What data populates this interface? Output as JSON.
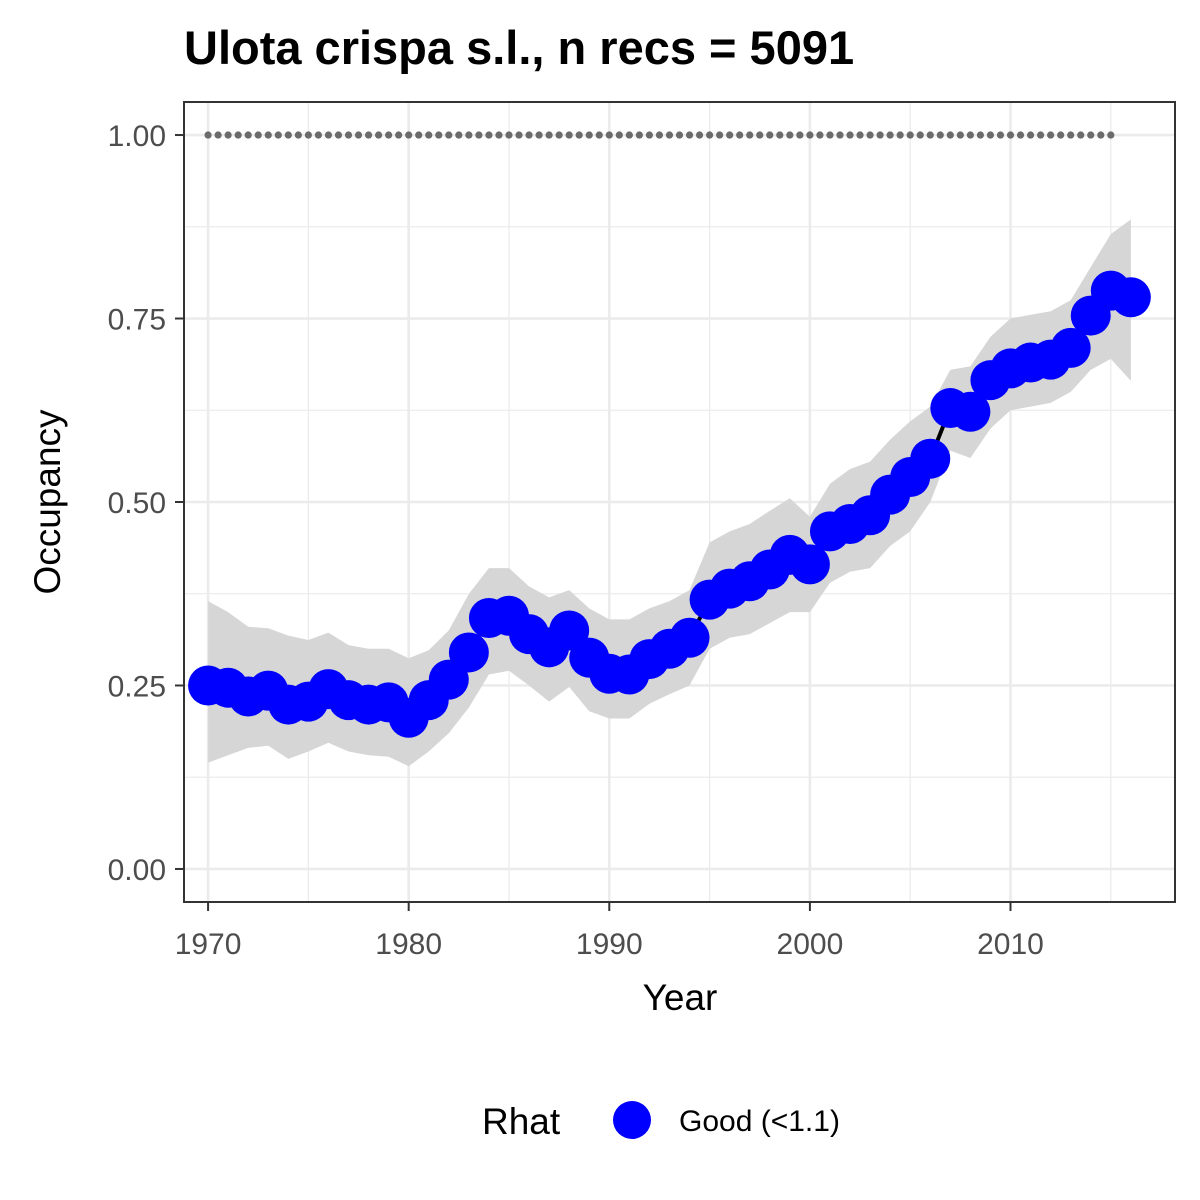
{
  "chart_data": {
    "type": "line",
    "title": "Ulota crispa s.l., n recs = 5091",
    "xlabel": "Year",
    "ylabel": "Occupancy",
    "xlim": [
      1968.8,
      2018.2
    ],
    "ylim": [
      -0.045,
      1.045
    ],
    "x_ticks": [
      1970,
      1980,
      1990,
      2000,
      2010
    ],
    "x_tick_labels": [
      "1970",
      "1980",
      "1990",
      "2000",
      "2010"
    ],
    "y_ticks": [
      0,
      0.25,
      0.5,
      0.75,
      1
    ],
    "y_tick_labels": [
      "0.00",
      "0.25",
      "0.50",
      "0.75",
      "1.00"
    ],
    "grid": true,
    "legend": {
      "title": "Rhat",
      "position": "bottom",
      "entries": [
        "Good (<1.1)"
      ]
    },
    "colors": {
      "points": "#0000ff",
      "line": "#000000",
      "ribbon": "#d6d6d6",
      "reference": "#6b6b6b",
      "grid": "#ebebeb",
      "panel_border": "#333333"
    },
    "reference_line": {
      "y": 1.0,
      "x_range": [
        1970,
        2015
      ],
      "style": "dotted"
    },
    "years": [
      1970,
      1971,
      1972,
      1973,
      1974,
      1975,
      1976,
      1977,
      1978,
      1979,
      1980,
      1981,
      1982,
      1983,
      1984,
      1985,
      1986,
      1987,
      1988,
      1989,
      1990,
      1991,
      1992,
      1993,
      1994,
      1995,
      1996,
      1997,
      1998,
      1999,
      2000,
      2001,
      2002,
      2003,
      2004,
      2005,
      2006,
      2007,
      2008,
      2009,
      2010,
      2011,
      2012,
      2013,
      2014,
      2015,
      2016
    ],
    "series": [
      {
        "name": "Good (<1.1)",
        "mean": [
          0.25,
          0.247,
          0.235,
          0.243,
          0.224,
          0.228,
          0.245,
          0.23,
          0.224,
          0.227,
          0.206,
          0.23,
          0.258,
          0.295,
          0.342,
          0.345,
          0.32,
          0.302,
          0.325,
          0.288,
          0.266,
          0.265,
          0.286,
          0.3,
          0.315,
          0.367,
          0.382,
          0.392,
          0.408,
          0.428,
          0.415,
          0.46,
          0.47,
          0.482,
          0.51,
          0.534,
          0.559,
          0.628,
          0.623,
          0.666,
          0.682,
          0.69,
          0.694,
          0.71,
          0.754,
          0.788,
          0.779
        ],
        "lower": [
          0.145,
          0.155,
          0.165,
          0.168,
          0.15,
          0.16,
          0.172,
          0.16,
          0.155,
          0.153,
          0.14,
          0.16,
          0.185,
          0.22,
          0.265,
          0.27,
          0.25,
          0.228,
          0.248,
          0.215,
          0.205,
          0.205,
          0.225,
          0.238,
          0.25,
          0.3,
          0.315,
          0.32,
          0.335,
          0.35,
          0.35,
          0.39,
          0.405,
          0.41,
          0.44,
          0.46,
          0.5,
          0.57,
          0.56,
          0.6,
          0.625,
          0.63,
          0.635,
          0.65,
          0.68,
          0.695,
          0.665
        ],
        "upper": [
          0.365,
          0.35,
          0.33,
          0.328,
          0.318,
          0.312,
          0.322,
          0.305,
          0.3,
          0.3,
          0.287,
          0.298,
          0.325,
          0.375,
          0.41,
          0.41,
          0.385,
          0.37,
          0.38,
          0.355,
          0.34,
          0.34,
          0.355,
          0.365,
          0.38,
          0.445,
          0.46,
          0.47,
          0.488,
          0.505,
          0.48,
          0.525,
          0.545,
          0.555,
          0.585,
          0.61,
          0.63,
          0.68,
          0.685,
          0.725,
          0.75,
          0.755,
          0.76,
          0.775,
          0.82,
          0.865,
          0.885
        ]
      }
    ]
  }
}
